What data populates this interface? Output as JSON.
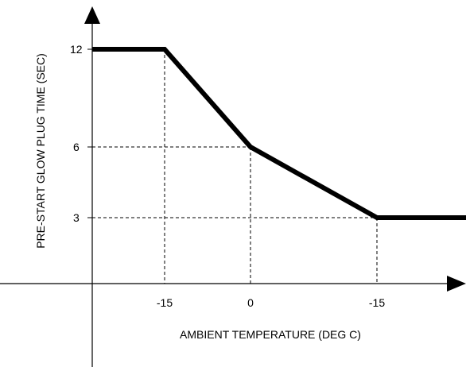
{
  "chart_data": {
    "type": "line",
    "xlabel": "AMBIENT TEMPERATURE (DEG C)",
    "ylabel": "PRE-START GLOW PLUG TIME (SEC)",
    "x_tick_labels": [
      "-15",
      "0",
      "-15"
    ],
    "y_tick_labels": [
      "12",
      "6",
      "3"
    ],
    "y_ticks": [
      12,
      6,
      3
    ],
    "ylim": [
      0,
      12
    ],
    "grid": false,
    "series": [
      {
        "points": [
          {
            "x_index": null,
            "y": 12
          },
          {
            "x_index": 0,
            "y": 12
          },
          {
            "x_index": 1,
            "y": 6
          },
          {
            "x_index": 2,
            "y": 3
          },
          {
            "x_index": null,
            "y": 3
          }
        ],
        "color": "#000000"
      }
    ],
    "reference_lines": "dashed guides from each marked point to both axes"
  }
}
